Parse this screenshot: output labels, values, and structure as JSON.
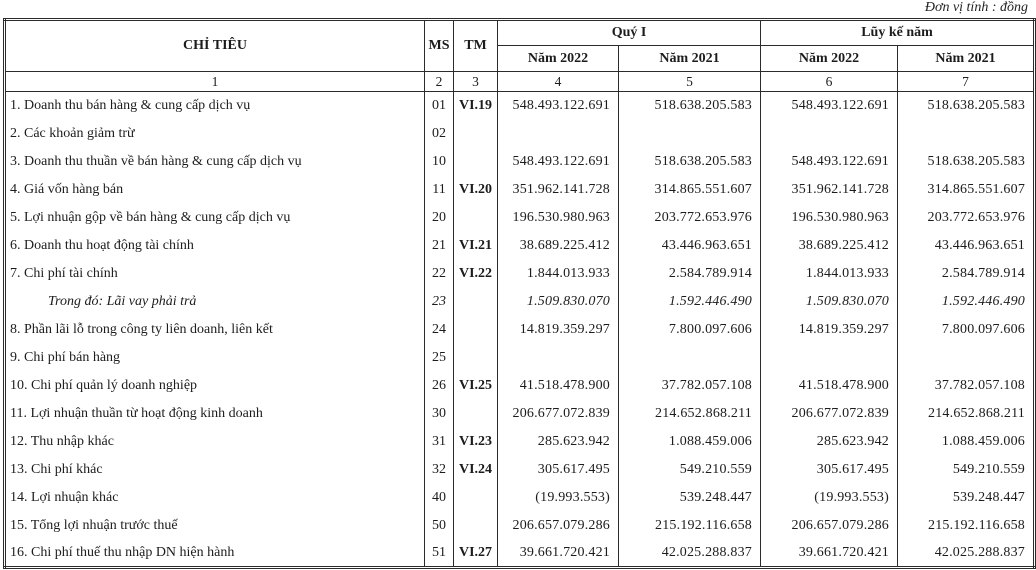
{
  "page": {
    "unit_note": "Đơn vị tính : đồng"
  },
  "table": {
    "header": {
      "chi_tieu": "CHỈ TIÊU",
      "ms": "MS",
      "tm": "TM",
      "quy_i": "Quý I",
      "luy_ke_nam": "Lũy kế năm",
      "sub_cols": [
        "Năm 2022",
        "Năm 2021",
        "Năm 2022",
        "Năm 2021"
      ],
      "index_row": [
        "1",
        "2",
        "3",
        "4",
        "5",
        "6",
        "7"
      ]
    },
    "rows": [
      {
        "label": "1. Doanh thu bán hàng & cung cấp dịch vụ",
        "ms": "01",
        "tm": "VI.19",
        "italic": false,
        "values": [
          "548.493.122.691",
          "518.638.205.583",
          "548.493.122.691",
          "518.638.205.583"
        ]
      },
      {
        "label": "2. Các khoản giảm trừ",
        "ms": "02",
        "tm": "",
        "italic": false,
        "values": [
          "",
          "",
          "",
          ""
        ]
      },
      {
        "label": "3. Doanh thu thuần về bán hàng & cung cấp dịch vụ",
        "ms": "10",
        "tm": "",
        "italic": false,
        "values": [
          "548.493.122.691",
          "518.638.205.583",
          "548.493.122.691",
          "518.638.205.583"
        ]
      },
      {
        "label": "4. Giá vốn hàng bán",
        "ms": "11",
        "tm": "VI.20",
        "italic": false,
        "values": [
          "351.962.141.728",
          "314.865.551.607",
          "351.962.141.728",
          "314.865.551.607"
        ]
      },
      {
        "label": "5. Lợi nhuận gộp về bán hàng & cung cấp dịch vụ",
        "ms": "20",
        "tm": "",
        "italic": false,
        "values": [
          "196.530.980.963",
          "203.772.653.976",
          "196.530.980.963",
          "203.772.653.976"
        ]
      },
      {
        "label": "6. Doanh thu hoạt động tài chính",
        "ms": "21",
        "tm": "VI.21",
        "italic": false,
        "values": [
          "38.689.225.412",
          "43.446.963.651",
          "38.689.225.412",
          "43.446.963.651"
        ]
      },
      {
        "label": "7. Chi phí tài chính",
        "ms": "22",
        "tm": "VI.22",
        "italic": false,
        "values": [
          "1.844.013.933",
          "2.584.789.914",
          "1.844.013.933",
          "2.584.789.914"
        ]
      },
      {
        "label": "Trong đó: Lãi vay phải trả",
        "ms": "23",
        "tm": "",
        "italic": true,
        "values": [
          "1.509.830.070",
          "1.592.446.490",
          "1.509.830.070",
          "1.592.446.490"
        ]
      },
      {
        "label": "8. Phần lãi lỗ trong công ty liên doanh, liên kết",
        "ms": "24",
        "tm": "",
        "italic": false,
        "values": [
          "14.819.359.297",
          "7.800.097.606",
          "14.819.359.297",
          "7.800.097.606"
        ]
      },
      {
        "label": "9. Chi phí bán hàng",
        "ms": "25",
        "tm": "",
        "italic": false,
        "values": [
          "",
          "",
          "",
          ""
        ]
      },
      {
        "label": "10. Chi phí quản lý doanh nghiệp",
        "ms": "26",
        "tm": "VI.25",
        "italic": false,
        "values": [
          "41.518.478.900",
          "37.782.057.108",
          "41.518.478.900",
          "37.782.057.108"
        ]
      },
      {
        "label": "11. Lợi nhuận thuần từ hoạt động kinh doanh",
        "ms": "30",
        "tm": "",
        "italic": false,
        "values": [
          "206.677.072.839",
          "214.652.868.211",
          "206.677.072.839",
          "214.652.868.211"
        ]
      },
      {
        "label": "12. Thu nhập khác",
        "ms": "31",
        "tm": "VI.23",
        "italic": false,
        "values": [
          "285.623.942",
          "1.088.459.006",
          "285.623.942",
          "1.088.459.006"
        ]
      },
      {
        "label": "13. Chi phí khác",
        "ms": "32",
        "tm": "VI.24",
        "italic": false,
        "values": [
          "305.617.495",
          "549.210.559",
          "305.617.495",
          "549.210.559"
        ]
      },
      {
        "label": "14. Lợi nhuận khác",
        "ms": "40",
        "tm": "",
        "italic": false,
        "values": [
          "(19.993.553)",
          "539.248.447",
          "(19.993.553)",
          "539.248.447"
        ]
      },
      {
        "label": "15. Tổng lợi nhuận trước thuế",
        "ms": "50",
        "tm": "",
        "italic": false,
        "values": [
          "206.657.079.286",
          "215.192.116.658",
          "206.657.079.286",
          "215.192.116.658"
        ]
      },
      {
        "label": "16. Chi phí thuế thu nhập DN hiện hành",
        "ms": "51",
        "tm": "VI.27",
        "italic": false,
        "values": [
          "39.661.720.421",
          "42.025.288.837",
          "39.661.720.421",
          "42.025.288.837"
        ]
      }
    ]
  }
}
